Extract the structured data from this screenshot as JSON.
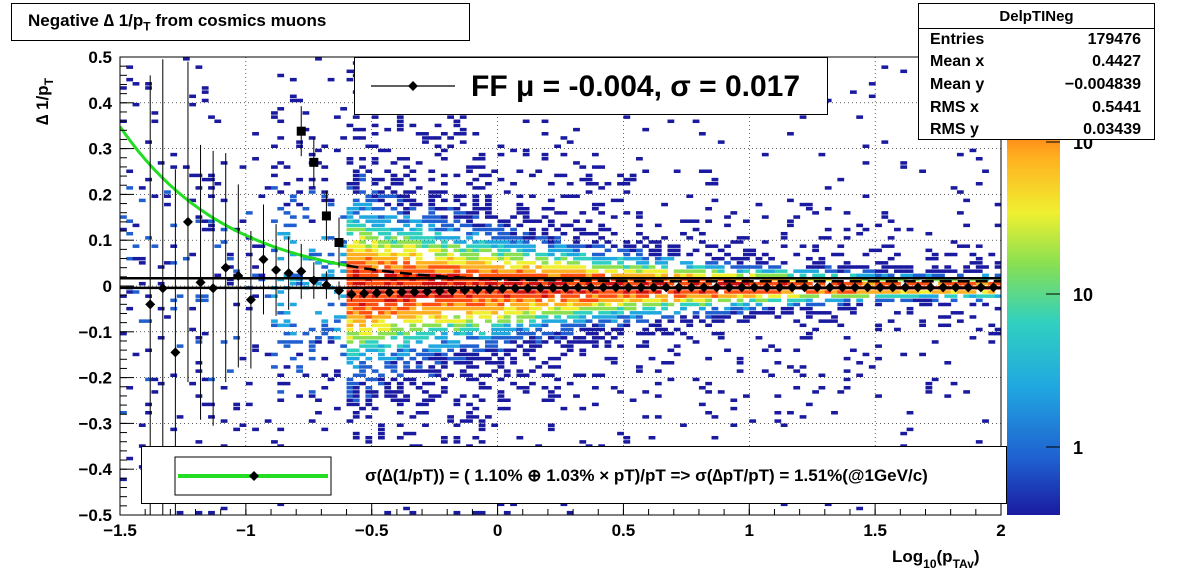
{
  "title": {
    "main": "Negative ∆ 1/p",
    "sub": "T",
    "rest": " from cosmics muons"
  },
  "stats": {
    "name": "DelpTINeg",
    "rows": [
      {
        "label": "Entries",
        "value": "179476"
      },
      {
        "label": "Mean x",
        "value": "0.4427"
      },
      {
        "label": "Mean y",
        "value": "−0.004839"
      },
      {
        "label": "RMS x",
        "value": "0.5441"
      },
      {
        "label": "RMS y",
        "value": "0.03439"
      }
    ]
  },
  "legend_ff": "FF μ = -0.004, σ =   0.017",
  "legend_fit": "σ(∆(1/pT)) = ( 1.10% ⊕  1.03% × pT)/pT => σ(∆pT/pT) =  1.51%(@1GeV/c)",
  "colors": {
    "fit_curve": "#22dd22",
    "markers": "#000000",
    "frame": "#000000"
  },
  "chart_data": {
    "type": "heatmap",
    "xlabel": {
      "main": "Log",
      "sub1": "10",
      "mid": "(p",
      "sub2": "TAv",
      "end": ")"
    },
    "ylabel": {
      "main": "∆ 1/p",
      "sub": "T"
    },
    "xlim": [
      -1.5,
      2.0
    ],
    "ylim": [
      -0.5,
      0.5
    ],
    "x_ticks": [
      {
        "v": -1.5,
        "label": "−1.5"
      },
      {
        "v": -1,
        "label": "−1"
      },
      {
        "v": -0.5,
        "label": "−0.5"
      },
      {
        "v": 0,
        "label": "0"
      },
      {
        "v": 0.5,
        "label": "0.5"
      },
      {
        "v": 1,
        "label": "1"
      },
      {
        "v": 1.5,
        "label": "1.5"
      },
      {
        "v": 2,
        "label": "2"
      }
    ],
    "y_ticks": [
      {
        "v": 0.5,
        "label": "0.5"
      },
      {
        "v": 0.4,
        "label": "0.4"
      },
      {
        "v": 0.3,
        "label": "0.3"
      },
      {
        "v": 0.2,
        "label": "0.2"
      },
      {
        "v": 0.1,
        "label": "0.1"
      },
      {
        "v": 0,
        "label": "0"
      },
      {
        "v": -0.1,
        "label": "−0.1"
      },
      {
        "v": -0.2,
        "label": "−0.2"
      },
      {
        "v": -0.3,
        "label": "−0.3"
      },
      {
        "v": -0.4,
        "label": "−0.4"
      },
      {
        "v": -0.5,
        "label": "−0.5"
      }
    ],
    "grid": true,
    "z_scale": "log",
    "colorbar_labels": [
      "10",
      "10",
      "1"
    ],
    "mean_points": [
      {
        "x": -1.38,
        "y": -0.04,
        "err": 0.5
      },
      {
        "x": -1.33,
        "y": -0.005,
        "err": 0.5
      },
      {
        "x": -1.28,
        "y": -0.145,
        "err": 0.4
      },
      {
        "x": -1.23,
        "y": 0.14,
        "err": 0.35
      },
      {
        "x": -1.18,
        "y": 0.008,
        "err": 0.3
      },
      {
        "x": -1.13,
        "y": -0.005,
        "err": 0.3
      },
      {
        "x": -1.08,
        "y": 0.04,
        "err": 0.25
      },
      {
        "x": -1.03,
        "y": 0.022,
        "err": 0.2
      },
      {
        "x": -0.98,
        "y": -0.03,
        "err": 0.15
      },
      {
        "x": -0.93,
        "y": 0.058,
        "err": 0.12
      },
      {
        "x": -0.88,
        "y": 0.035,
        "err": 0.1
      },
      {
        "x": -0.83,
        "y": 0.028,
        "err": 0.08
      },
      {
        "x": -0.78,
        "y": 0.032,
        "err": 0.06
      },
      {
        "x": -0.73,
        "y": 0.012,
        "err": 0.04
      },
      {
        "x": -0.68,
        "y": 0.002,
        "err": 0.03
      },
      {
        "x": -0.63,
        "y": -0.01,
        "err": 0.02
      },
      {
        "x": -0.58,
        "y": -0.018,
        "err": 0.015
      },
      {
        "x": -0.53,
        "y": -0.016,
        "err": 0.01
      },
      {
        "x": -0.48,
        "y": -0.015,
        "err": 0.01
      },
      {
        "x": -0.43,
        "y": -0.014,
        "err": 0.008
      },
      {
        "x": -0.38,
        "y": -0.013,
        "err": 0.006
      },
      {
        "x": -0.33,
        "y": -0.013,
        "err": 0.005
      },
      {
        "x": -0.28,
        "y": -0.012,
        "err": 0.004
      },
      {
        "x": -0.23,
        "y": -0.011,
        "err": 0.003
      },
      {
        "x": -0.18,
        "y": -0.01,
        "err": 0.002
      },
      {
        "x": -0.13,
        "y": -0.009,
        "err": 0.002
      },
      {
        "x": -0.08,
        "y": -0.008,
        "err": 0.002
      },
      {
        "x": -0.03,
        "y": -0.007,
        "err": 0.001
      },
      {
        "x": 0.02,
        "y": -0.006,
        "err": 0.001
      },
      {
        "x": 0.07,
        "y": -0.005,
        "err": 0.001
      },
      {
        "x": 0.12,
        "y": -0.005,
        "err": 0.001
      },
      {
        "x": 0.17,
        "y": -0.004,
        "err": 0.001
      },
      {
        "x": 0.22,
        "y": -0.004,
        "err": 0.001
      },
      {
        "x": 0.27,
        "y": -0.004,
        "err": 0.001
      },
      {
        "x": 0.32,
        "y": -0.003,
        "err": 0.001
      },
      {
        "x": 0.37,
        "y": -0.003,
        "err": 0.001
      },
      {
        "x": 0.42,
        "y": -0.003,
        "err": 0.001
      },
      {
        "x": 0.47,
        "y": -0.003,
        "err": 0.001
      },
      {
        "x": 0.52,
        "y": -0.003,
        "err": 0.001
      },
      {
        "x": 0.57,
        "y": -0.003,
        "err": 0.001
      },
      {
        "x": 0.62,
        "y": -0.003,
        "err": 0.001
      },
      {
        "x": 0.67,
        "y": -0.003,
        "err": 0.001
      },
      {
        "x": 0.72,
        "y": -0.003,
        "err": 0.001
      },
      {
        "x": 0.77,
        "y": -0.003,
        "err": 0.001
      },
      {
        "x": 0.82,
        "y": -0.003,
        "err": 0.001
      },
      {
        "x": 0.87,
        "y": -0.003,
        "err": 0.001
      },
      {
        "x": 0.92,
        "y": -0.003,
        "err": 0.001
      },
      {
        "x": 0.97,
        "y": -0.003,
        "err": 0.001
      },
      {
        "x": 1.02,
        "y": -0.003,
        "err": 0.001
      },
      {
        "x": 1.07,
        "y": -0.003,
        "err": 0.001
      },
      {
        "x": 1.12,
        "y": -0.003,
        "err": 0.001
      },
      {
        "x": 1.17,
        "y": -0.003,
        "err": 0.001
      },
      {
        "x": 1.22,
        "y": -0.003,
        "err": 0.001
      },
      {
        "x": 1.27,
        "y": -0.003,
        "err": 0.001
      },
      {
        "x": 1.32,
        "y": -0.003,
        "err": 0.001
      },
      {
        "x": 1.37,
        "y": -0.003,
        "err": 0.001
      },
      {
        "x": 1.42,
        "y": -0.003,
        "err": 0.001
      },
      {
        "x": 1.47,
        "y": -0.003,
        "err": 0.001
      },
      {
        "x": 1.52,
        "y": -0.003,
        "err": 0.001
      },
      {
        "x": 1.57,
        "y": -0.003,
        "err": 0.001
      },
      {
        "x": 1.62,
        "y": -0.003,
        "err": 0.001
      },
      {
        "x": 1.67,
        "y": -0.003,
        "err": 0.001
      },
      {
        "x": 1.72,
        "y": -0.003,
        "err": 0.001
      },
      {
        "x": 1.77,
        "y": -0.003,
        "err": 0.001
      },
      {
        "x": 1.82,
        "y": -0.003,
        "err": 0.001
      },
      {
        "x": 1.87,
        "y": -0.003,
        "err": 0.001
      },
      {
        "x": 1.92,
        "y": -0.003,
        "err": 0.001
      },
      {
        "x": 1.97,
        "y": -0.003,
        "err": 0.001
      }
    ],
    "sigma_points": [
      {
        "x": -0.78,
        "y": 0.338
      },
      {
        "x": -0.73,
        "y": 0.27
      },
      {
        "x": -0.68,
        "y": 0.153
      },
      {
        "x": -0.63,
        "y": 0.095
      }
    ],
    "mean_line_y": -0.004,
    "sigma_line_y": 0.017,
    "fit_curve": {
      "a": 0.011,
      "b": 0.0103,
      "x_from": -1.5,
      "x_to": -0.6,
      "dashed_to": 2.0
    }
  }
}
